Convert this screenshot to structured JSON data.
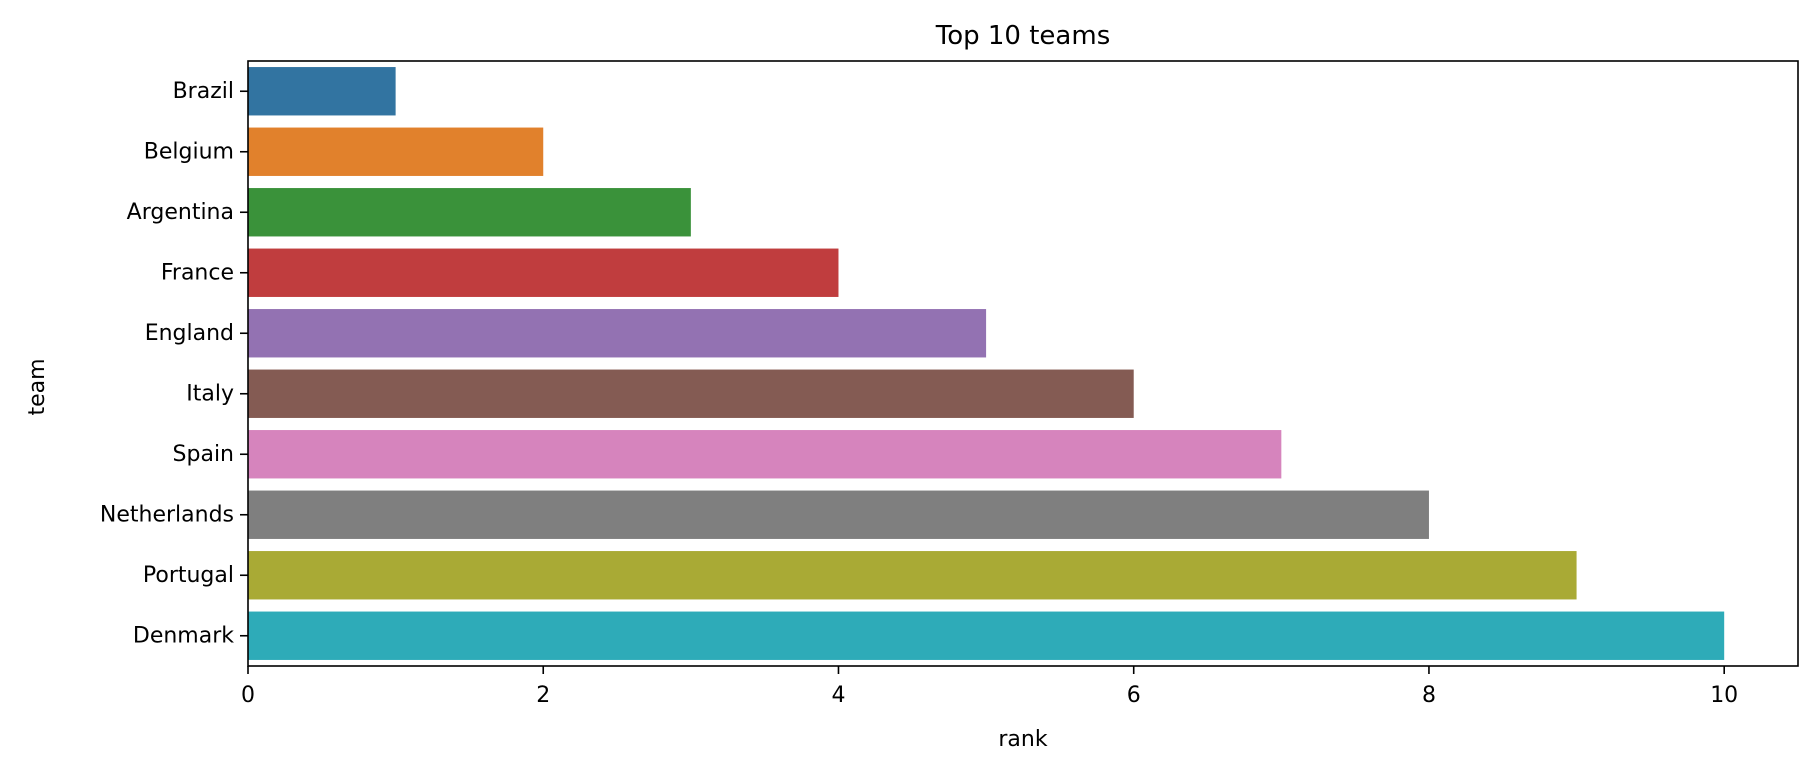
{
  "chart_data": {
    "type": "bar",
    "orientation": "horizontal",
    "title": "Top 10 teams",
    "xlabel": "rank",
    "ylabel": "team",
    "categories": [
      "Brazil",
      "Belgium",
      "Argentina",
      "France",
      "England",
      "Italy",
      "Spain",
      "Netherlands",
      "Portugal",
      "Denmark"
    ],
    "values": [
      1,
      2,
      3,
      4,
      5,
      6,
      7,
      8,
      9,
      10
    ],
    "colors": [
      "#3274a1",
      "#e1812c",
      "#3a923a",
      "#c03d3e",
      "#9372b2",
      "#845b53",
      "#d684bd",
      "#7f7f7f",
      "#a9aa35",
      "#2eabb8"
    ],
    "xlim": [
      0,
      10.5
    ],
    "xticks": [
      0,
      2,
      4,
      6,
      8,
      10
    ],
    "grid": false,
    "legend": "none"
  }
}
